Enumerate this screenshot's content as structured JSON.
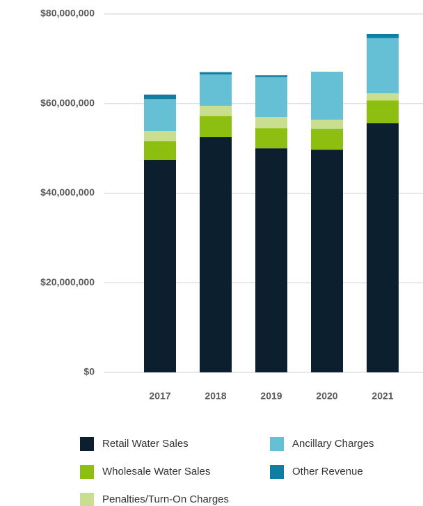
{
  "chart_data": {
    "type": "bar",
    "stacked": true,
    "categories": [
      "2017",
      "2018",
      "2019",
      "2020",
      "2021"
    ],
    "series": [
      {
        "name": "Retail Water Sales",
        "color": "#0b1f2e",
        "values": [
          47400000,
          52500000,
          50000000,
          49700000,
          55600000
        ]
      },
      {
        "name": "Wholesale Water Sales",
        "color": "#8cbf0f",
        "values": [
          4200000,
          4700000,
          4500000,
          4700000,
          5100000
        ]
      },
      {
        "name": "Penalties/Turn-On Charges",
        "color": "#c9de8e",
        "values": [
          2300000,
          2300000,
          2500000,
          2000000,
          1600000
        ]
      },
      {
        "name": "Ancillary Charges",
        "color": "#66c0d5",
        "values": [
          7100000,
          7000000,
          8900000,
          10700000,
          12300000
        ]
      },
      {
        "name": "Other Revenue",
        "color": "#0f7ea0",
        "values": [
          1000000,
          500000,
          400000,
          0,
          900000
        ]
      }
    ],
    "ylim": [
      0,
      80000000
    ],
    "yticks": [
      {
        "value": 0,
        "label": "$0"
      },
      {
        "value": 20000000,
        "label": "$20,000,000"
      },
      {
        "value": 40000000,
        "label": "$40,000,000"
      },
      {
        "value": 60000000,
        "label": "$60,000,000"
      },
      {
        "value": 80000000,
        "label": "$80,000,000"
      }
    ],
    "grid": true
  }
}
